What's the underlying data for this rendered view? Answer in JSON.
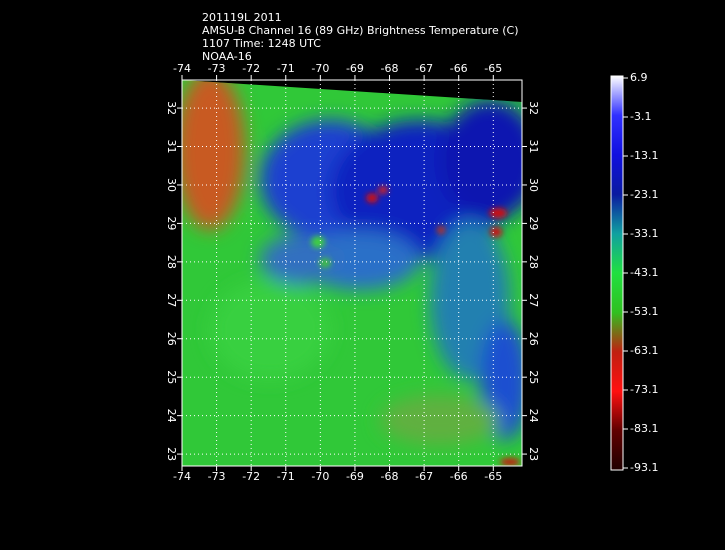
{
  "header": {
    "lines": [
      "201119L 2011",
      "AMSU-B Channel 16 (89 GHz) Brightness Temperature (C)",
      "1107 Time: 1248 UTC",
      "NOAA-16"
    ]
  },
  "map": {
    "lon_ticks": [
      -74,
      -73,
      -72,
      -71,
      -70,
      -69,
      -68,
      -67,
      -66,
      -65
    ],
    "lonlim": [
      -74,
      -64.17
    ],
    "lat_ticks": [
      23,
      24,
      25,
      26,
      27,
      28,
      29,
      30,
      31,
      32
    ],
    "latlim": [
      22.69,
      32.73
    ],
    "grid": true
  },
  "colorbar": {
    "ticks": [
      6.9,
      -3.1,
      -13.1,
      -23.1,
      -33.1,
      -43.1,
      -53.1,
      -63.1,
      -73.1,
      -83.1,
      -93.1
    ],
    "colors": [
      "#ffffff",
      "#3030ff",
      "#1010e0",
      "#0a1aa0",
      "#10a0a0",
      "#20e040",
      "#30c020",
      "#c02010",
      "#ff1010",
      "#600000",
      "#200000"
    ]
  }
}
